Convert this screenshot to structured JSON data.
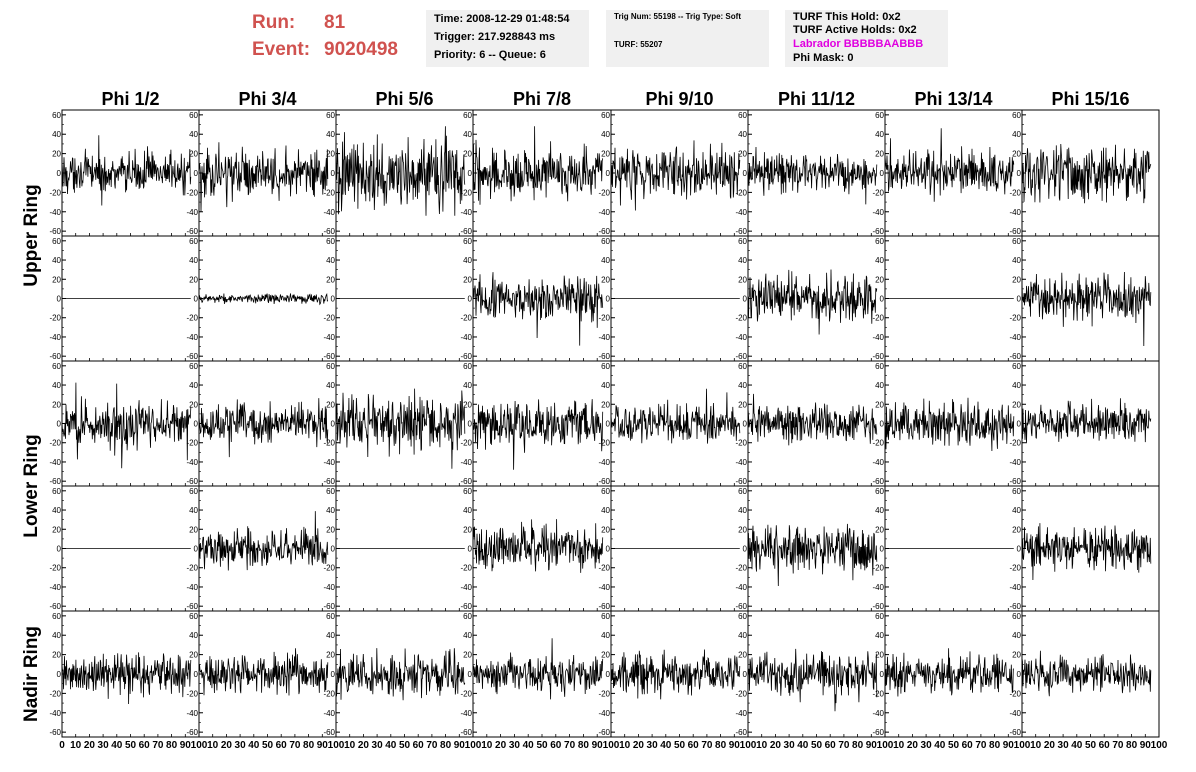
{
  "header": {
    "run_label": "Run:",
    "run_value": "81",
    "event_label": "Event:",
    "event_value": "9020498",
    "time": "Time: 2008-12-29 01:48:54",
    "trigger": "Trigger: 217.928843 ms",
    "priority": "Priority: 6 -- Queue: 6",
    "trig_num": "Trig Num: 55198 -- Trig Type: Soft",
    "turf": "TURF: 55207",
    "turf_this_hold": "TURF This Hold: 0x2",
    "turf_active_holds": "TURF Active Holds: 0x2",
    "labrador": "Labrador BBBBBAABBB",
    "phi_mask": "Phi Mask: 0"
  },
  "colors": {
    "run_text": "#d0524f",
    "labrador_text": "#e000e0",
    "info_background": "#f0f0f0",
    "trace": "#000000"
  },
  "chart_data": {
    "type": "line",
    "columns": [
      "Phi 1/2",
      "Phi 3/4",
      "Phi 5/6",
      "Phi 7/8",
      "Phi 9/10",
      "Phi 11/12",
      "Phi 13/14",
      "Phi 15/16"
    ],
    "ring_labels": [
      {
        "label": "Upper Ring",
        "rows": [
          0,
          1
        ]
      },
      {
        "label": "Lower Ring",
        "rows": [
          2,
          3
        ]
      },
      {
        "label": "Nadir Ring",
        "rows": [
          4
        ]
      }
    ],
    "rows": 5,
    "xlim": [
      0,
      100
    ],
    "ylim": [
      -65,
      65
    ],
    "x_ticks": [
      0,
      10,
      20,
      30,
      40,
      50,
      60,
      70,
      80,
      90,
      100
    ],
    "y_ticks": [
      -60,
      -40,
      -20,
      0,
      20,
      40,
      60
    ],
    "samples_per_trace": 260,
    "trace_amplitude": [
      [
        12,
        14,
        22,
        16,
        16,
        12,
        14,
        18
      ],
      [
        0,
        3,
        0,
        14,
        0,
        15,
        0,
        14
      ],
      [
        14,
        12,
        17,
        14,
        12,
        12,
        14,
        12
      ],
      [
        0,
        12,
        0,
        14,
        0,
        14,
        0,
        13
      ],
      [
        13,
        12,
        13,
        11,
        12,
        13,
        12,
        11
      ]
    ]
  }
}
